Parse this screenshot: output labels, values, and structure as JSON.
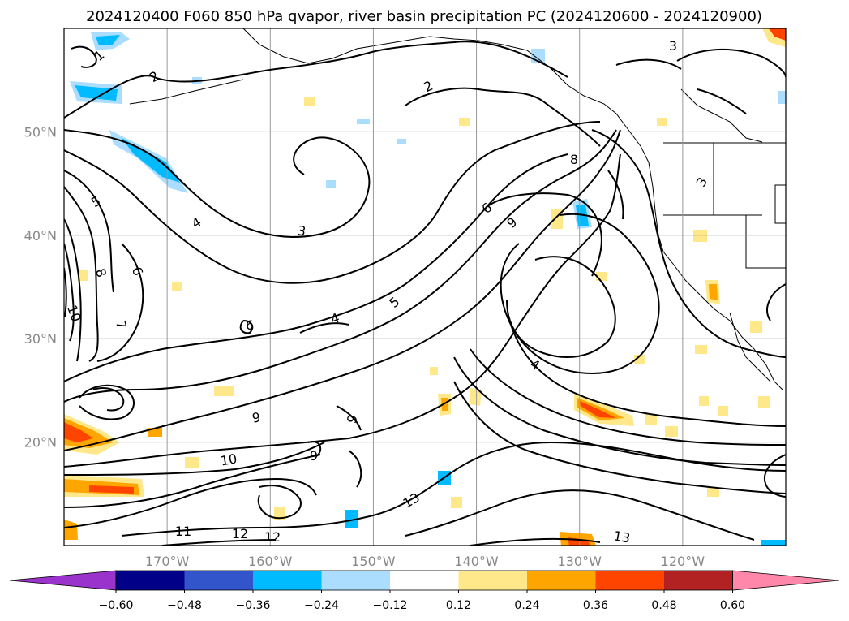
{
  "title": "2024120400 F060 850 hPa qvapor, river basin precipitation PC (2024120600 - 2024120900)",
  "chart_data": {
    "type": "contour-map",
    "title": "2024120400 F060 850 hPa qvapor, river basin precipitation PC (2024120600 - 2024120900)",
    "lon_ticks": [
      "170°W",
      "160°W",
      "150°W",
      "140°W",
      "130°W",
      "120°W"
    ],
    "lat_ticks": [
      "50°N",
      "40°N",
      "30°N",
      "20°N"
    ],
    "lon_tick_values": [
      -170,
      -160,
      -150,
      -140,
      -130,
      -120
    ],
    "lat_tick_values": [
      50,
      40,
      30,
      20
    ],
    "lon_range": [
      -180,
      -110
    ],
    "lat_range": [
      10,
      60
    ],
    "grid": true,
    "contour_labels": [
      "1",
      "2",
      "2",
      "3",
      "3",
      "3",
      "4",
      "4",
      "4",
      "5",
      "5",
      "6",
      "6",
      "6",
      "7",
      "8",
      "8",
      "9",
      "9",
      "9",
      "9",
      "10",
      "10",
      "11",
      "12",
      "12",
      "13",
      "13"
    ],
    "colorbar": {
      "ticks": [
        "−0.60",
        "−0.48",
        "−0.36",
        "−0.24",
        "−0.12",
        "0.12",
        "0.24",
        "0.36",
        "0.48",
        "0.60"
      ],
      "tick_values": [
        -0.6,
        -0.48,
        -0.36,
        -0.24,
        -0.12,
        0.12,
        0.24,
        0.36,
        0.48,
        0.6
      ],
      "colors": [
        "#9933cc",
        "#000088",
        "#3355cc",
        "#00bbff",
        "#aaddff",
        "#ffffff",
        "#ffe88a",
        "#ffa500",
        "#ff4400",
        "#b22222",
        "#ff88aa"
      ],
      "extend": "both"
    }
  }
}
